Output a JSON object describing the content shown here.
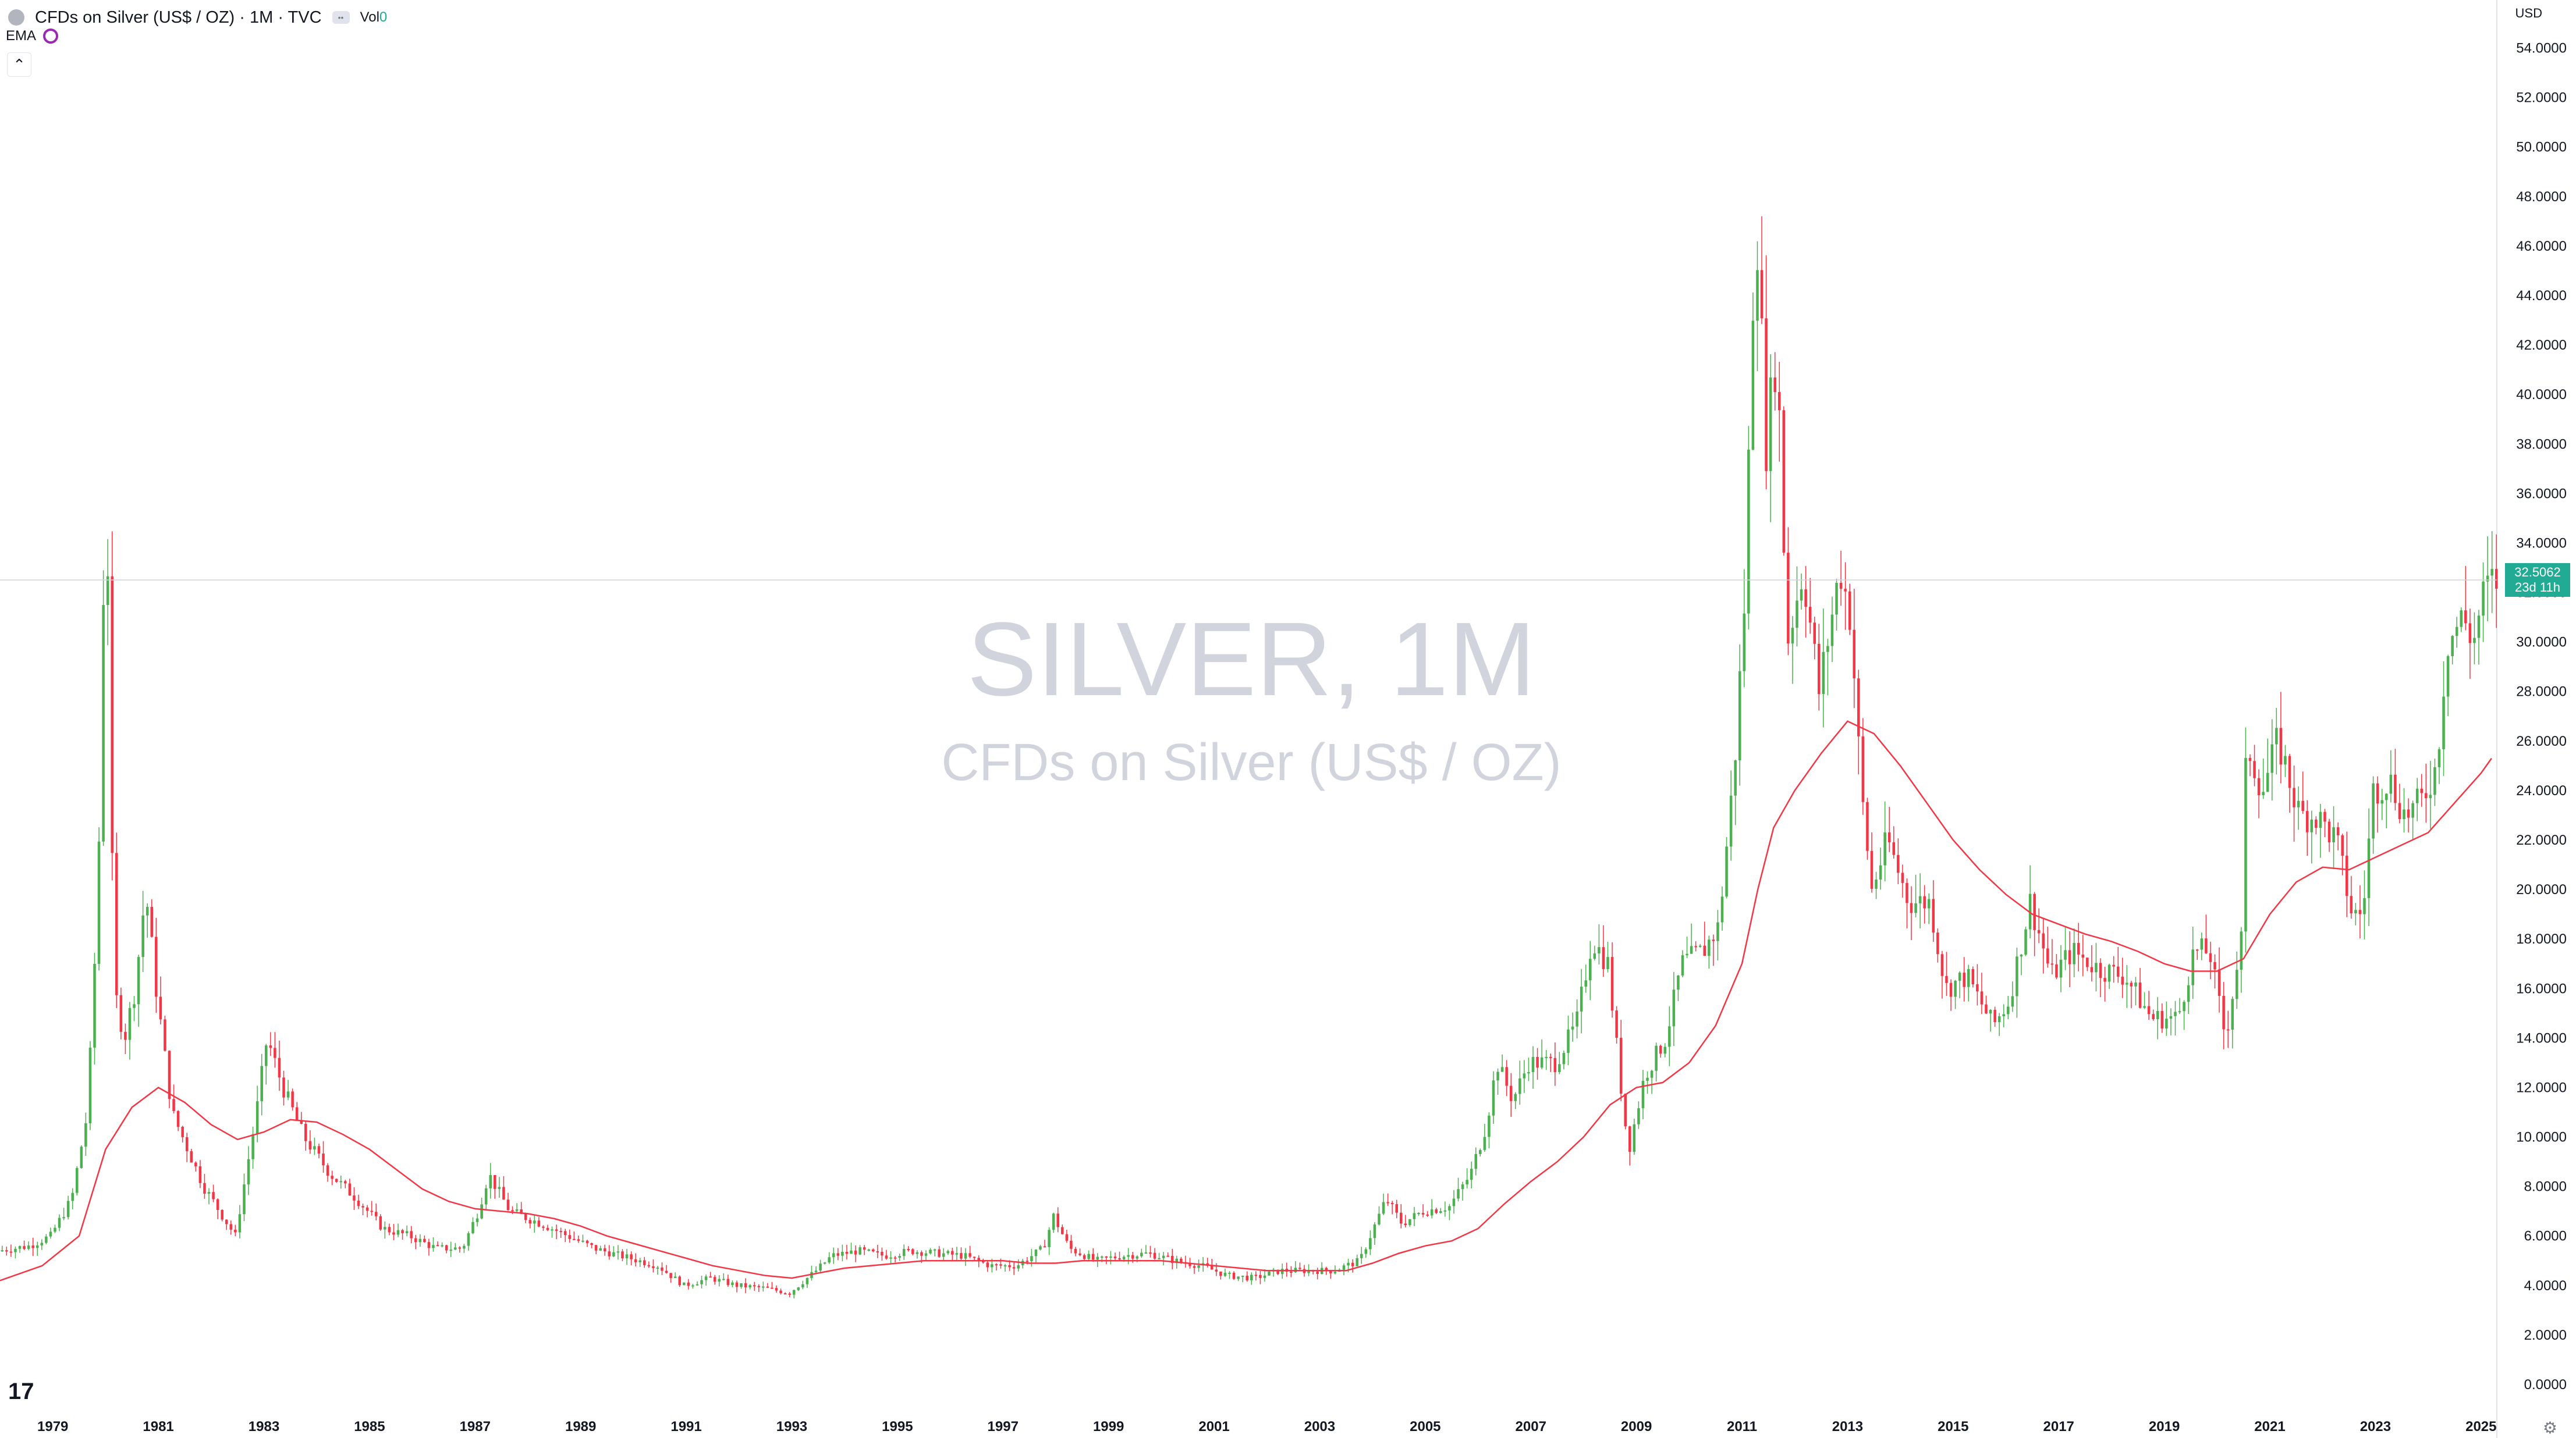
{
  "header": {
    "title": "CFDs on Silver (US$ / OZ) · 1M · TVC",
    "volume_label": "Vol",
    "volume_value": "0",
    "indicator_label": "EMA",
    "currency": "USD"
  },
  "watermark": {
    "symbol": "SILVER, 1M",
    "description": "CFDs on Silver (US$ / OZ)"
  },
  "price_label": {
    "price": "32.5062",
    "countdown": "23d 11h"
  },
  "colors": {
    "up": "#4caf50",
    "down": "#f23645",
    "ema": "#f23645",
    "price_line": "#22ab94"
  },
  "chart_data": {
    "type": "candlestick",
    "y_ticks": [
      "0.0000",
      "2.0000",
      "4.0000",
      "6.0000",
      "8.0000",
      "10.0000",
      "12.0000",
      "14.0000",
      "16.0000",
      "18.0000",
      "20.0000",
      "22.0000",
      "24.0000",
      "26.0000",
      "28.0000",
      "30.0000",
      "32.0000",
      "34.0000",
      "36.0000",
      "38.0000",
      "40.0000",
      "42.0000",
      "44.0000",
      "46.0000",
      "48.0000",
      "50.0000",
      "52.0000",
      "54.0000"
    ],
    "x_ticks": [
      "1979",
      "1981",
      "1983",
      "1985",
      "1987",
      "1989",
      "1991",
      "1993",
      "1995",
      "1997",
      "1999",
      "2001",
      "2003",
      "2005",
      "2007",
      "2009",
      "2011",
      "2013",
      "2015",
      "2017",
      "2019",
      "2021",
      "2023",
      "2025"
    ],
    "ylim": [
      0,
      55
    ],
    "xlim": [
      1978.0,
      2025.3
    ],
    "last_price": 32.5062,
    "price_path": [
      [
        1978.0,
        5.4
      ],
      [
        1978.6,
        5.6
      ],
      [
        1979.0,
        6.0
      ],
      [
        1979.4,
        7.5
      ],
      [
        1979.7,
        11.0
      ],
      [
        1979.9,
        20.0
      ],
      [
        1980.05,
        38.0
      ],
      [
        1980.2,
        16.0
      ],
      [
        1980.4,
        14.0
      ],
      [
        1980.6,
        16.0
      ],
      [
        1980.8,
        20.0
      ],
      [
        1981.0,
        16.0
      ],
      [
        1981.3,
        11.0
      ],
      [
        1981.6,
        9.5
      ],
      [
        1981.9,
        8.0
      ],
      [
        1982.2,
        7.0
      ],
      [
        1982.5,
        6.0
      ],
      [
        1982.7,
        8.5
      ],
      [
        1982.9,
        11.0
      ],
      [
        1983.1,
        14.0
      ],
      [
        1983.4,
        12.0
      ],
      [
        1983.8,
        10.0
      ],
      [
        1984.3,
        8.5
      ],
      [
        1984.8,
        7.5
      ],
      [
        1985.3,
        6.3
      ],
      [
        1985.8,
        6.0
      ],
      [
        1986.3,
        5.5
      ],
      [
        1986.8,
        5.5
      ],
      [
        1987.1,
        7.0
      ],
      [
        1987.3,
        8.5
      ],
      [
        1987.7,
        7.0
      ],
      [
        1988.3,
        6.5
      ],
      [
        1988.8,
        6.0
      ],
      [
        1989.3,
        5.5
      ],
      [
        1989.8,
        5.2
      ],
      [
        1990.5,
        4.8
      ],
      [
        1991.0,
        4.0
      ],
      [
        1991.5,
        4.3
      ],
      [
        1992.0,
        4.0
      ],
      [
        1992.5,
        3.9
      ],
      [
        1993.0,
        3.7
      ],
      [
        1993.5,
        4.6
      ],
      [
        1993.8,
        5.2
      ],
      [
        1994.3,
        5.4
      ],
      [
        1994.8,
        5.2
      ],
      [
        1995.3,
        5.4
      ],
      [
        1995.8,
        5.3
      ],
      [
        1996.3,
        5.2
      ],
      [
        1996.8,
        4.8
      ],
      [
        1997.3,
        4.8
      ],
      [
        1997.8,
        5.5
      ],
      [
        1998.0,
        6.8
      ],
      [
        1998.3,
        5.5
      ],
      [
        1998.8,
        5.0
      ],
      [
        1999.3,
        5.2
      ],
      [
        1999.8,
        5.3
      ],
      [
        2000.3,
        5.0
      ],
      [
        2000.8,
        4.8
      ],
      [
        2001.3,
        4.4
      ],
      [
        2001.8,
        4.3
      ],
      [
        2002.3,
        4.6
      ],
      [
        2002.8,
        4.6
      ],
      [
        2003.3,
        4.6
      ],
      [
        2003.8,
        5.0
      ],
      [
        2004.1,
        6.5
      ],
      [
        2004.3,
        7.5
      ],
      [
        2004.6,
        6.5
      ],
      [
        2005.0,
        7.0
      ],
      [
        2005.5,
        7.2
      ],
      [
        2005.9,
        8.5
      ],
      [
        2006.2,
        10.5
      ],
      [
        2006.4,
        13.0
      ],
      [
        2006.7,
        11.5
      ],
      [
        2007.0,
        13.0
      ],
      [
        2007.5,
        13.0
      ],
      [
        2007.9,
        14.5
      ],
      [
        2008.2,
        18.0
      ],
      [
        2008.5,
        17.0
      ],
      [
        2008.8,
        11.0
      ],
      [
        2008.9,
        9.5
      ],
      [
        2009.2,
        12.5
      ],
      [
        2009.6,
        14.0
      ],
      [
        2009.9,
        17.0
      ],
      [
        2010.3,
        17.5
      ],
      [
        2010.6,
        18.5
      ],
      [
        2010.9,
        25.0
      ],
      [
        2011.1,
        32.0
      ],
      [
        2011.3,
        48.0
      ],
      [
        2011.5,
        38.0
      ],
      [
        2011.7,
        42.0
      ],
      [
        2011.9,
        30.0
      ],
      [
        2012.2,
        33.0
      ],
      [
        2012.5,
        28.0
      ],
      [
        2012.9,
        33.0
      ],
      [
        2013.1,
        31.0
      ],
      [
        2013.3,
        24.0
      ],
      [
        2013.5,
        20.0
      ],
      [
        2013.8,
        22.0
      ],
      [
        2014.2,
        19.5
      ],
      [
        2014.6,
        19.5
      ],
      [
        2014.9,
        16.0
      ],
      [
        2015.3,
        16.5
      ],
      [
        2015.8,
        14.5
      ],
      [
        2016.1,
        15.5
      ],
      [
        2016.5,
        19.5
      ],
      [
        2016.9,
        16.5
      ],
      [
        2017.3,
        17.5
      ],
      [
        2017.8,
        16.8
      ],
      [
        2018.3,
        16.5
      ],
      [
        2018.8,
        14.8
      ],
      [
        2019.3,
        14.8
      ],
      [
        2019.6,
        17.5
      ],
      [
        2019.9,
        17.5
      ],
      [
        2020.2,
        14.0
      ],
      [
        2020.5,
        18.0
      ],
      [
        2020.6,
        26.0
      ],
      [
        2020.9,
        24.0
      ],
      [
        2021.2,
        26.0
      ],
      [
        2021.6,
        23.0
      ],
      [
        2021.9,
        23.0
      ],
      [
        2022.3,
        22.0
      ],
      [
        2022.6,
        19.0
      ],
      [
        2022.8,
        19.0
      ],
      [
        2023.0,
        24.0
      ],
      [
        2023.3,
        24.5
      ],
      [
        2023.6,
        23.0
      ],
      [
        2023.9,
        23.5
      ],
      [
        2024.2,
        25.0
      ],
      [
        2024.4,
        30.0
      ],
      [
        2024.7,
        31.0
      ],
      [
        2024.9,
        30.0
      ],
      [
        2025.1,
        32.0
      ],
      [
        2025.3,
        32.5
      ]
    ],
    "ema_path": [
      [
        1978.0,
        4.2
      ],
      [
        1978.8,
        4.8
      ],
      [
        1979.5,
        6.0
      ],
      [
        1980.0,
        9.5
      ],
      [
        1980.5,
        11.2
      ],
      [
        1981.0,
        12.0
      ],
      [
        1981.5,
        11.4
      ],
      [
        1982.0,
        10.5
      ],
      [
        1982.5,
        9.9
      ],
      [
        1983.0,
        10.2
      ],
      [
        1983.5,
        10.7
      ],
      [
        1984.0,
        10.6
      ],
      [
        1984.5,
        10.1
      ],
      [
        1985.0,
        9.5
      ],
      [
        1985.5,
        8.7
      ],
      [
        1986.0,
        7.9
      ],
      [
        1986.5,
        7.4
      ],
      [
        1987.0,
        7.1
      ],
      [
        1987.5,
        7.0
      ],
      [
        1988.0,
        6.9
      ],
      [
        1988.5,
        6.7
      ],
      [
        1989.0,
        6.4
      ],
      [
        1989.5,
        6.0
      ],
      [
        1990.0,
        5.7
      ],
      [
        1990.5,
        5.4
      ],
      [
        1991.0,
        5.1
      ],
      [
        1991.5,
        4.8
      ],
      [
        1992.0,
        4.6
      ],
      [
        1992.5,
        4.4
      ],
      [
        1993.0,
        4.3
      ],
      [
        1993.5,
        4.5
      ],
      [
        1994.0,
        4.7
      ],
      [
        1994.5,
        4.8
      ],
      [
        1995.0,
        4.9
      ],
      [
        1995.5,
        5.0
      ],
      [
        1996.0,
        5.0
      ],
      [
        1996.5,
        5.0
      ],
      [
        1997.0,
        5.0
      ],
      [
        1997.5,
        4.9
      ],
      [
        1998.0,
        4.9
      ],
      [
        1998.5,
        5.0
      ],
      [
        1999.0,
        5.0
      ],
      [
        1999.5,
        5.0
      ],
      [
        2000.0,
        5.0
      ],
      [
        2000.5,
        4.9
      ],
      [
        2001.0,
        4.8
      ],
      [
        2001.5,
        4.7
      ],
      [
        2002.0,
        4.6
      ],
      [
        2002.5,
        4.6
      ],
      [
        2003.0,
        4.6
      ],
      [
        2003.5,
        4.6
      ],
      [
        2004.0,
        4.9
      ],
      [
        2004.5,
        5.3
      ],
      [
        2005.0,
        5.6
      ],
      [
        2005.5,
        5.8
      ],
      [
        2006.0,
        6.3
      ],
      [
        2006.5,
        7.3
      ],
      [
        2007.0,
        8.2
      ],
      [
        2007.5,
        9.0
      ],
      [
        2008.0,
        10.0
      ],
      [
        2008.5,
        11.3
      ],
      [
        2009.0,
        12.0
      ],
      [
        2009.5,
        12.2
      ],
      [
        2010.0,
        13.0
      ],
      [
        2010.5,
        14.5
      ],
      [
        2011.0,
        17.0
      ],
      [
        2011.3,
        20.0
      ],
      [
        2011.6,
        22.5
      ],
      [
        2012.0,
        24.0
      ],
      [
        2012.5,
        25.5
      ],
      [
        2013.0,
        26.8
      ],
      [
        2013.5,
        26.3
      ],
      [
        2014.0,
        25.0
      ],
      [
        2014.5,
        23.5
      ],
      [
        2015.0,
        22.0
      ],
      [
        2015.5,
        20.8
      ],
      [
        2016.0,
        19.8
      ],
      [
        2016.5,
        19.0
      ],
      [
        2017.0,
        18.6
      ],
      [
        2017.5,
        18.2
      ],
      [
        2018.0,
        17.9
      ],
      [
        2018.5,
        17.5
      ],
      [
        2019.0,
        17.0
      ],
      [
        2019.5,
        16.7
      ],
      [
        2020.0,
        16.7
      ],
      [
        2020.5,
        17.2
      ],
      [
        2021.0,
        19.0
      ],
      [
        2021.5,
        20.3
      ],
      [
        2022.0,
        20.9
      ],
      [
        2022.5,
        20.8
      ],
      [
        2023.0,
        21.3
      ],
      [
        2023.5,
        21.8
      ],
      [
        2024.0,
        22.3
      ],
      [
        2024.5,
        23.5
      ],
      [
        2025.0,
        24.7
      ],
      [
        2025.2,
        25.3
      ]
    ]
  }
}
